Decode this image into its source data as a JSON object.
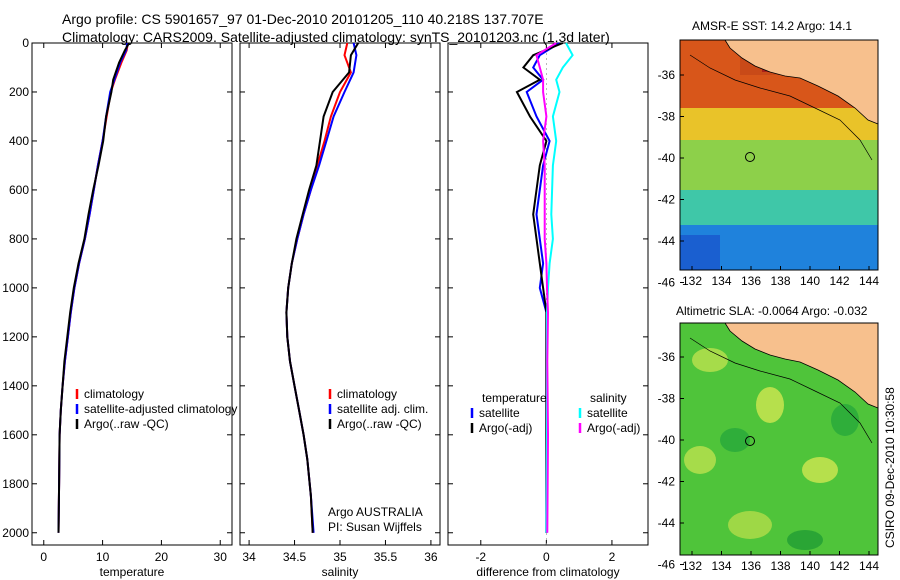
{
  "header": {
    "line1": "Argo profile: CS 5901657_97 01-Dec-2010 20101205_110 40.218S 137.707E",
    "line2": "Climatology: CARS2009. Satellite-adjusted climatology: synTS_20101203.nc (1.3d later)"
  },
  "maps": {
    "sst_title": "AMSR-E SST: 14.2 Argo: 14.1",
    "sla_title": "Altimetric SLA: -0.0064 Argo: -0.032",
    "y_ticks": [
      "-36",
      "-38",
      "-40",
      "-42",
      "-44",
      "-46"
    ],
    "x_ticks": [
      "132",
      "134",
      "136",
      "138",
      "140",
      "142",
      "144"
    ],
    "colors": {
      "land": "#f7c08d",
      "sst_warm": "#e0671c",
      "sst_cool": "#1f82dc",
      "sla_mid": "#4fc43a"
    }
  },
  "credit": "CSIRO 09-Dec-2010 10:30:58",
  "chart_data": [
    {
      "type": "line",
      "xlabel": "temperature",
      "ylabel": "",
      "xlim": [
        -2,
        32
      ],
      "ylim": [
        2050,
        0
      ],
      "x_ticks": [
        "0",
        "10",
        "20",
        "30"
      ],
      "y_ticks": [
        "0",
        "200",
        "400",
        "600",
        "800",
        "1000",
        "1200",
        "1400",
        "1600",
        "1800",
        "2000"
      ],
      "series": [
        {
          "name": "climatology",
          "color": "#ff0000",
          "x": [
            14.3,
            14.1,
            13.2,
            12.1,
            11.4,
            10.7,
            10.0,
            9.2,
            8.5,
            7.8,
            7.0,
            6.0,
            5.2,
            4.6,
            4.1,
            3.6,
            3.2,
            2.9,
            2.7,
            2.6,
            2.5
          ],
          "y": [
            0,
            30,
            80,
            150,
            200,
            300,
            400,
            500,
            600,
            700,
            800,
            900,
            1000,
            1100,
            1200,
            1300,
            1400,
            1500,
            1600,
            1800,
            2000
          ]
        },
        {
          "name": "satellite-adjusted climatology",
          "color": "#0000ff",
          "x": [
            14.2,
            14.0,
            13.0,
            12.0,
            11.3,
            10.6,
            10.0,
            9.2,
            8.5,
            7.8,
            7.0,
            6.0,
            5.2,
            4.6,
            4.1,
            3.6,
            3.2,
            2.9,
            2.7,
            2.6,
            2.5
          ],
          "y": [
            0,
            30,
            80,
            150,
            200,
            300,
            400,
            500,
            600,
            700,
            800,
            900,
            1000,
            1100,
            1200,
            1300,
            1400,
            1500,
            1600,
            1800,
            2000
          ]
        },
        {
          "name": "Argo(..raw -QC)",
          "color": "#000000",
          "x": [
            14.5,
            13.8,
            12.8,
            11.8,
            11.5,
            10.6,
            10.1,
            9.3,
            8.4,
            7.6,
            6.9,
            5.9,
            5.1,
            4.5,
            4.0,
            3.5,
            3.2,
            2.9,
            2.7,
            2.6,
            2.5
          ],
          "y": [
            0,
            30,
            80,
            150,
            200,
            300,
            400,
            500,
            600,
            700,
            800,
            900,
            1000,
            1100,
            1200,
            1300,
            1400,
            1500,
            1600,
            1800,
            2000
          ]
        }
      ]
    },
    {
      "type": "line",
      "xlabel": "salinity",
      "ylabel": "",
      "xlim": [
        33.9,
        36.1
      ],
      "ylim": [
        2050,
        0
      ],
      "x_ticks": [
        "34",
        "34.5",
        "35",
        "35.5",
        "36"
      ],
      "series": [
        {
          "name": "climatology",
          "color": "#ff0000",
          "x": [
            35.08,
            35.05,
            35.12,
            35.0,
            34.9,
            34.83,
            34.75,
            34.68,
            34.6,
            34.53,
            34.47,
            34.43,
            34.41,
            34.42,
            34.45,
            34.5,
            34.55,
            34.6,
            34.64,
            34.68,
            34.7
          ],
          "y": [
            0,
            50,
            120,
            200,
            300,
            400,
            500,
            600,
            700,
            800,
            900,
            1000,
            1100,
            1200,
            1300,
            1400,
            1500,
            1600,
            1700,
            1850,
            2000
          ]
        },
        {
          "name": "satellite adj. clim.",
          "color": "#0000ff",
          "x": [
            35.15,
            35.18,
            35.15,
            35.05,
            34.93,
            34.85,
            34.77,
            34.68,
            34.6,
            34.53,
            34.47,
            34.43,
            34.41,
            34.42,
            34.45,
            34.5,
            34.55,
            34.6,
            34.64,
            34.68,
            34.71
          ],
          "y": [
            0,
            50,
            120,
            200,
            300,
            400,
            500,
            600,
            700,
            800,
            900,
            1000,
            1100,
            1200,
            1300,
            1400,
            1500,
            1600,
            1700,
            1850,
            2000
          ]
        },
        {
          "name": "Argo(..raw -QC)",
          "color": "#000000",
          "x": [
            35.2,
            35.12,
            35.1,
            34.92,
            34.82,
            34.78,
            34.74,
            34.66,
            34.59,
            34.52,
            34.47,
            34.43,
            34.41,
            34.42,
            34.45,
            34.5,
            34.55,
            34.6,
            34.64,
            34.68,
            34.7
          ],
          "y": [
            0,
            50,
            120,
            200,
            300,
            400,
            500,
            600,
            700,
            800,
            900,
            1000,
            1100,
            1200,
            1300,
            1400,
            1500,
            1600,
            1700,
            1850,
            2000
          ]
        }
      ],
      "annotations": [
        "Argo AUSTRALIA",
        "PI: Susan Wijffels"
      ]
    },
    {
      "type": "line",
      "xlabel": "difference from climatology",
      "ylabel": "",
      "xlim": [
        -3,
        3.1
      ],
      "ylim": [
        2050,
        0
      ],
      "x_ticks": [
        "-2",
        "0",
        "2"
      ],
      "legend_groups": [
        "temperature",
        "salinity"
      ],
      "series": [
        {
          "name": "satellite",
          "group": "temperature",
          "color": "#0000ff",
          "x": [
            0.4,
            -0.2,
            -0.4,
            -0.1,
            -0.6,
            -0.3,
            0.1,
            -0.1,
            -0.3,
            -0.2,
            -0.1,
            -0.2,
            0.0,
            0.0,
            0.0,
            0.0
          ],
          "y": [
            0,
            50,
            100,
            150,
            200,
            300,
            400,
            500,
            700,
            800,
            900,
            1000,
            1100,
            1300,
            1600,
            2000
          ]
        },
        {
          "name": "Argo(-adj)",
          "group": "temperature",
          "color": "#000000",
          "x": [
            0.5,
            -0.4,
            -0.7,
            -0.2,
            -0.9,
            -0.5,
            0.0,
            -0.2,
            -0.4,
            -0.3,
            -0.2,
            -0.1,
            0.0,
            0.0,
            0.0,
            0.0
          ],
          "y": [
            0,
            50,
            100,
            150,
            200,
            300,
            400,
            500,
            700,
            800,
            900,
            1000,
            1100,
            1300,
            1600,
            2000
          ]
        },
        {
          "name": "satellite",
          "group": "salinity",
          "color": "#00ffff",
          "x": [
            0.6,
            0.8,
            0.5,
            0.3,
            0.4,
            0.2,
            0.3,
            0.2,
            0.15,
            0.2,
            0.1,
            0.05,
            0.02,
            0.02,
            0.02,
            0.0
          ],
          "y": [
            0,
            50,
            100,
            150,
            200,
            300,
            400,
            500,
            700,
            800,
            900,
            1000,
            1100,
            1300,
            1600,
            2000
          ]
        },
        {
          "name": "Argo(-adj)",
          "group": "salinity",
          "color": "#ff00ff",
          "x": [
            0.3,
            -0.3,
            -0.2,
            -0.1,
            -0.1,
            0.0,
            -0.1,
            -0.05,
            -0.05,
            -0.05,
            0.0,
            0.02,
            0.05,
            0.03,
            0.05,
            0.03
          ],
          "y": [
            0,
            50,
            100,
            150,
            200,
            300,
            400,
            500,
            700,
            800,
            900,
            1000,
            1100,
            1300,
            1600,
            2000
          ]
        }
      ]
    }
  ]
}
